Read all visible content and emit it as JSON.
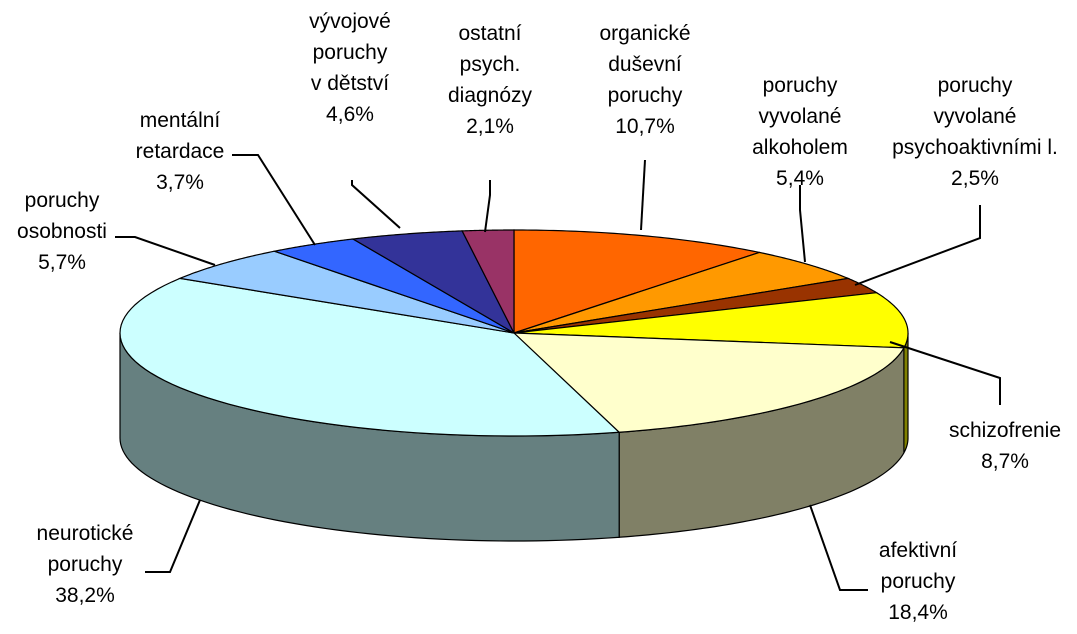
{
  "chart_data": {
    "type": "pie3d",
    "categories": [
      "organické\nduševní\nporuchy",
      "poruchy\nvyvolané\nalkoholem",
      "poruchy\nvyvolané\npsychoaktivními l.",
      "schizofrenie",
      "afektivní\nporuchy",
      "neurotické\nporuchy",
      "poruchy\nosobnosti",
      "mentální\nretardace",
      "vývojové\nporuchy\nv dětství",
      "ostatní\npsych.\ndiagnózy"
    ],
    "values": [
      10.7,
      5.4,
      2.5,
      8.7,
      18.4,
      38.2,
      5.7,
      3.7,
      4.6,
      2.1
    ],
    "value_labels": [
      "10,7%",
      "5,4%",
      "2,5%",
      "8,7%",
      "18,4%",
      "38,2%",
      "5,7%",
      "3,7%",
      "4,6%",
      "2,1%"
    ],
    "colors": [
      "#ff6600",
      "#ff9900",
      "#993300",
      "#ffff00",
      "#ffffcc",
      "#ccffff",
      "#99ccff",
      "#3366ff",
      "#333399",
      "#993366"
    ]
  }
}
